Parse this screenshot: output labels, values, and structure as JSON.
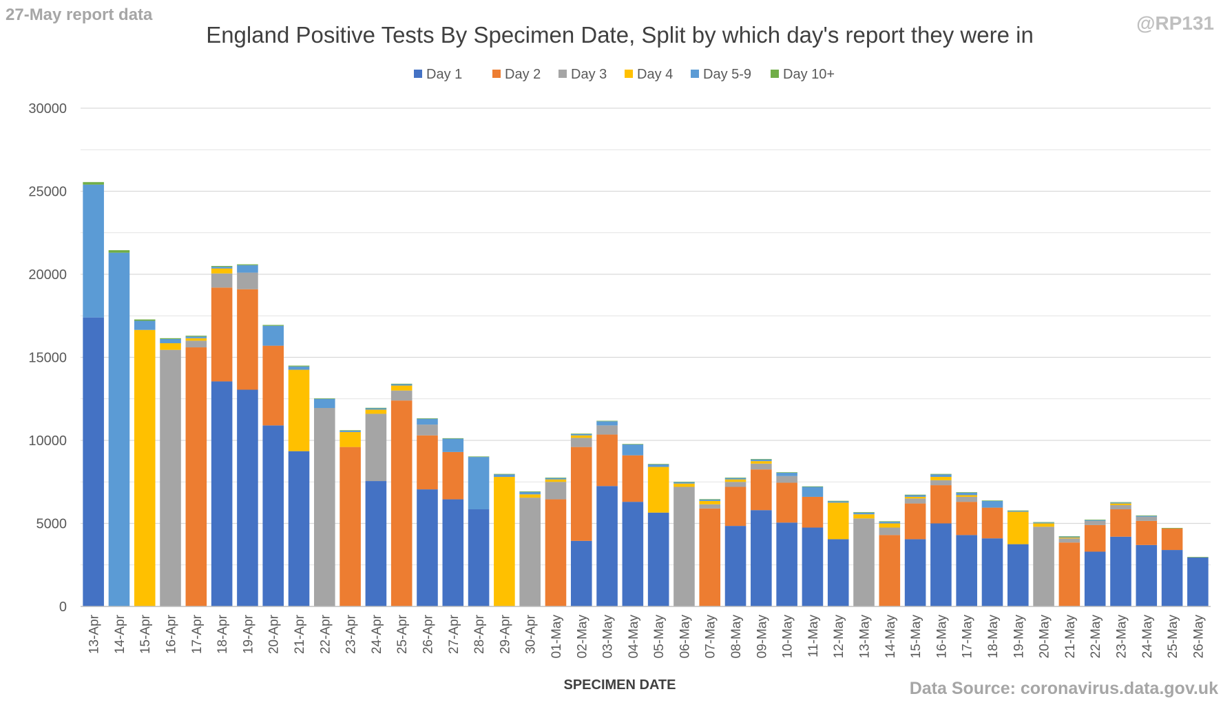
{
  "header": {
    "report_label": "27-May report data",
    "handle": "@RP131"
  },
  "footer": {
    "source": "Data Source: coronavirus.data.gov.uk"
  },
  "colors": {
    "Day 1": "#4472c4",
    "Day 2": "#ed7d31",
    "Day 3": "#a5a5a5",
    "Day 4": "#ffc000",
    "Day 5-9": "#5b9bd5",
    "Day 10+": "#70ad47",
    "grid": "#d9d9d9",
    "axis_text": "#595959"
  },
  "chart_data": {
    "type": "bar",
    "stacked": true,
    "title": "England Positive Tests By Specimen Date, Split by which day's report they were in",
    "xlabel": "SPECIMEN DATE",
    "ylabel": "",
    "ylim": [
      0,
      30000
    ],
    "yticks": [
      0,
      5000,
      10000,
      15000,
      20000,
      25000,
      30000
    ],
    "grid": true,
    "legend_position": "top",
    "categories": [
      "13-Apr",
      "14-Apr",
      "15-Apr",
      "16-Apr",
      "17-Apr",
      "18-Apr",
      "19-Apr",
      "20-Apr",
      "21-Apr",
      "22-Apr",
      "23-Apr",
      "24-Apr",
      "25-Apr",
      "26-Apr",
      "27-Apr",
      "28-Apr",
      "29-Apr",
      "30-Apr",
      "01-May",
      "02-May",
      "03-May",
      "04-May",
      "05-May",
      "06-May",
      "07-May",
      "08-May",
      "09-May",
      "10-May",
      "11-May",
      "12-May",
      "13-May",
      "14-May",
      "15-May",
      "16-May",
      "17-May",
      "18-May",
      "19-May",
      "20-May",
      "21-May",
      "22-May",
      "23-May",
      "24-May",
      "25-May",
      "26-May"
    ],
    "series": [
      {
        "name": "Day 1",
        "values": [
          17400,
          0,
          0,
          0,
          0,
          13550,
          13050,
          10900,
          9350,
          0,
          0,
          7550,
          0,
          7050,
          6450,
          5850,
          0,
          0,
          0,
          3950,
          7250,
          6300,
          5650,
          0,
          0,
          4850,
          5800,
          5050,
          4750,
          4050,
          0,
          0,
          4050,
          5000,
          4300,
          4100,
          3750,
          0,
          0,
          3300,
          4200,
          3700,
          3400,
          2950
        ]
      },
      {
        "name": "Day 2",
        "values": [
          0,
          0,
          0,
          0,
          15600,
          5650,
          6050,
          4800,
          0,
          0,
          9600,
          0,
          12400,
          3250,
          2850,
          0,
          0,
          0,
          6450,
          5650,
          3100,
          2800,
          0,
          0,
          5900,
          2350,
          2450,
          2400,
          1850,
          0,
          0,
          4300,
          2150,
          2300,
          2000,
          1850,
          0,
          0,
          3850,
          1600,
          1650,
          1450,
          1300,
          0
        ]
      },
      {
        "name": "Day 3",
        "values": [
          0,
          0,
          0,
          15450,
          400,
          850,
          1000,
          0,
          0,
          11950,
          0,
          4050,
          600,
          650,
          0,
          0,
          0,
          6550,
          1050,
          550,
          550,
          0,
          0,
          7200,
          250,
          300,
          350,
          400,
          0,
          0,
          5300,
          450,
          300,
          300,
          300,
          0,
          0,
          4800,
          250,
          250,
          250,
          250,
          0,
          0
        ]
      },
      {
        "name": "Day 4",
        "values": [
          0,
          0,
          16650,
          400,
          150,
          300,
          0,
          0,
          4900,
          0,
          900,
          250,
          300,
          0,
          0,
          0,
          7800,
          200,
          150,
          150,
          0,
          0,
          2750,
          200,
          200,
          150,
          150,
          0,
          0,
          2200,
          250,
          250,
          100,
          200,
          100,
          0,
          1950,
          200,
          50,
          0,
          100,
          0,
          0,
          0
        ]
      },
      {
        "name": "Day 5-9",
        "values": [
          8000,
          21300,
          550,
          250,
          100,
          100,
          450,
          1200,
          200,
          550,
          80,
          80,
          80,
          350,
          800,
          3150,
          150,
          150,
          80,
          80,
          250,
          650,
          150,
          80,
          80,
          80,
          100,
          200,
          600,
          80,
          100,
          100,
          100,
          150,
          150,
          400,
          50,
          50,
          50,
          50,
          50,
          50,
          0,
          0
        ]
      },
      {
        "name": "Day 10+",
        "values": [
          150,
          150,
          80,
          50,
          50,
          50,
          50,
          50,
          50,
          30,
          30,
          30,
          30,
          30,
          30,
          30,
          30,
          30,
          30,
          30,
          30,
          30,
          30,
          30,
          30,
          30,
          30,
          30,
          30,
          30,
          30,
          30,
          30,
          30,
          30,
          30,
          30,
          30,
          30,
          30,
          30,
          30,
          30,
          30
        ]
      }
    ]
  }
}
